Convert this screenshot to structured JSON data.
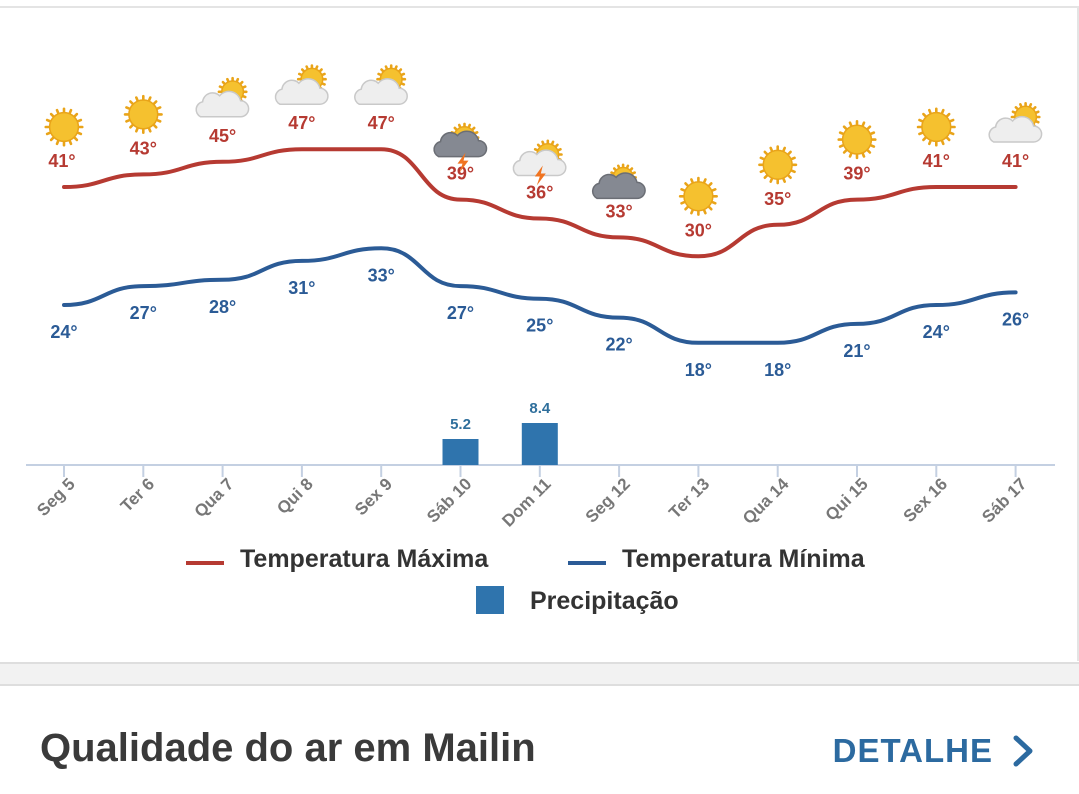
{
  "chart_data": {
    "type": "line",
    "categories": [
      "Seg 5",
      "Ter 6",
      "Qua 7",
      "Qui 8",
      "Sex 9",
      "Sáb 10",
      "Dom 11",
      "Seg 12",
      "Ter 13",
      "Qua 14",
      "Qui 15",
      "Sex 16",
      "Sáb 17"
    ],
    "series": [
      {
        "name": "Temperatura Máxima",
        "type": "line",
        "color": "#b63a32",
        "values": [
          41,
          43,
          45,
          47,
          47,
          39,
          36,
          33,
          30,
          35,
          39,
          41,
          41
        ]
      },
      {
        "name": "Temperatura Mínima",
        "type": "line",
        "color": "#2b5b96",
        "values": [
          24,
          27,
          28,
          31,
          33,
          27,
          25,
          22,
          18,
          18,
          21,
          24,
          26
        ]
      },
      {
        "name": "Precipitação",
        "type": "bar",
        "color": "#2f74ad",
        "values": [
          null,
          null,
          null,
          null,
          null,
          5.2,
          8.4,
          null,
          null,
          null,
          null,
          null,
          null
        ]
      }
    ],
    "icons": [
      "sun-icon",
      "sun-icon",
      "partly-cloudy-icon",
      "partly-cloudy-icon",
      "partly-cloudy-icon",
      "storm-icon",
      "thunder-partly-icon",
      "cloudy-icon",
      "sun-icon",
      "sun-icon",
      "sun-icon",
      "sun-icon",
      "partly-cloudy-icon"
    ],
    "legend_position": "bottom",
    "grid": false,
    "unit_suffix": "°"
  },
  "air_quality": {
    "title": "Qualidade do ar em Mailin",
    "detail_label": "DETALHE"
  }
}
